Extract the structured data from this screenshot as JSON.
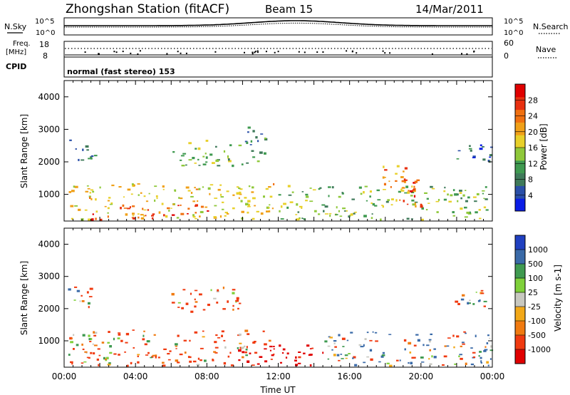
{
  "header": {
    "station": "Zhongshan Station (fitACF)",
    "beam": "Beam 15",
    "date": "14/Mar/2011"
  },
  "strip": {
    "nsky_label": "N.Sky",
    "nsearch_label": "N.Search",
    "freq_label_1": "Freq.",
    "freq_label_2": "[MHz]",
    "nave_label": "Nave",
    "cpid_label": "CPID",
    "cpid_text": "normal (fast stereo) 153",
    "noise_ticks_left": [
      "10^5",
      "10^0"
    ],
    "noise_ticks_right": [
      "10^5",
      "10^0"
    ],
    "freq_ticks": [
      "18",
      "8"
    ],
    "nave_ticks": [
      "60",
      "0"
    ]
  },
  "colors": {
    "power": [
      "#0a1de6",
      "#2a4fa8",
      "#3f7a5a",
      "#3f9a50",
      "#8fc83a",
      "#e8d02a",
      "#f0a018",
      "#f07010",
      "#e83010",
      "#e00000"
    ],
    "velocity": [
      "#e00000",
      "#f03a10",
      "#f07a10",
      "#f2a818",
      "#c8c8c0",
      "#7fd03a",
      "#3f9a50",
      "#3a6aa8",
      "#2040c0"
    ]
  },
  "chart_data": [
    {
      "type": "heatmap",
      "name": "power",
      "ylabel": "Slant Range [km]",
      "xlim": [
        "00:00",
        "24:00"
      ],
      "ylim": [
        180,
        4500
      ],
      "yticks": [
        "1000",
        "2000",
        "3000",
        "4000"
      ],
      "colorbar_label": "Power [dB]",
      "colorbar_ticks": [
        "4",
        "8",
        "12",
        "16",
        "20",
        "24",
        "28"
      ],
      "colorbar_range": [
        0,
        32
      ],
      "regions": [
        {
          "t0": 0.2,
          "t1": 11.8,
          "r0": 250,
          "r1": 1350,
          "value": 18
        },
        {
          "t0": 1.5,
          "t1": 8.0,
          "r0": 250,
          "r1": 700,
          "value": 26
        },
        {
          "t0": 12.0,
          "t1": 24.0,
          "r0": 250,
          "r1": 1300,
          "value": 13
        },
        {
          "t0": 17.8,
          "t1": 20.0,
          "r0": 600,
          "r1": 1900,
          "value": 22
        },
        {
          "t0": 18.8,
          "t1": 19.7,
          "r0": 700,
          "r1": 1500,
          "value": 29
        },
        {
          "t0": 0.2,
          "t1": 1.7,
          "r0": 2000,
          "r1": 2700,
          "value": 7
        },
        {
          "t0": 6.0,
          "t1": 9.8,
          "r0": 1900,
          "r1": 2700,
          "value": 13
        },
        {
          "t0": 9.9,
          "t1": 11.3,
          "r0": 1900,
          "r1": 3100,
          "value": 9
        },
        {
          "t0": 21.5,
          "t1": 23.9,
          "r0": 2000,
          "r1": 2600,
          "value": 6
        }
      ]
    },
    {
      "type": "heatmap",
      "name": "velocity",
      "ylabel": "Slant Range [km]",
      "xlabel": "Time UT",
      "xlim": [
        "00:00",
        "24:00"
      ],
      "ylim": [
        180,
        4500
      ],
      "xticks": [
        "00:00",
        "04:00",
        "08:00",
        "12:00",
        "16:00",
        "20:00",
        "00:00"
      ],
      "yticks": [
        "1000",
        "2000",
        "3000",
        "4000"
      ],
      "colorbar_label": "Velocity [m s-1]",
      "colorbar_ticks": [
        "1000",
        "500",
        "100",
        "25",
        "-25",
        "-100",
        "-500",
        "-1000"
      ],
      "colorbar_range": [
        -1000,
        1000
      ],
      "regions": [
        {
          "t0": 0.2,
          "t1": 11.8,
          "r0": 250,
          "r1": 1350,
          "value": -150
        },
        {
          "t0": 9.5,
          "t1": 14.5,
          "r0": 250,
          "r1": 900,
          "value": -700
        },
        {
          "t0": 14.5,
          "t1": 24.0,
          "r0": 250,
          "r1": 1300,
          "value": 60
        },
        {
          "t0": 6.0,
          "t1": 9.8,
          "r0": 1900,
          "r1": 2700,
          "value": -200
        },
        {
          "t0": 0.2,
          "t1": 1.7,
          "r0": 2000,
          "r1": 2700,
          "value": 0
        },
        {
          "t0": 21.5,
          "t1": 23.9,
          "r0": 2000,
          "r1": 2600,
          "value": 0
        }
      ]
    }
  ]
}
